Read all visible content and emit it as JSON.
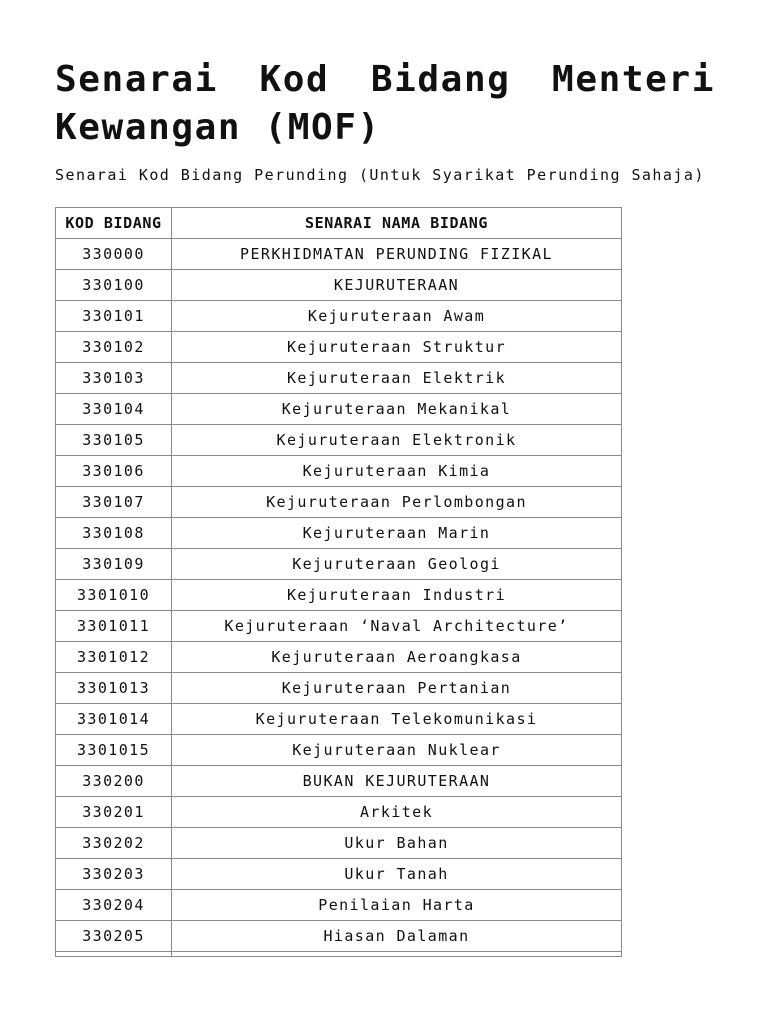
{
  "title": {
    "line1": [
      "Senarai",
      "Kod",
      "Bidang",
      "Menteri"
    ],
    "line2": "Kewangan (MOF)"
  },
  "subtitle": "Senarai Kod Bidang Perunding (Untuk Syarikat Perunding Sahaja)",
  "table": {
    "headers": [
      "KOD BIDANG",
      "SENARAI NAMA BIDANG"
    ],
    "rows": [
      [
        "330000",
        "PERKHIDMATAN PERUNDING FIZIKAL"
      ],
      [
        "330100",
        "KEJURUTERAAN"
      ],
      [
        "330101",
        "Kejuruteraan Awam"
      ],
      [
        "330102",
        "Kejuruteraan Struktur"
      ],
      [
        "330103",
        "Kejuruteraan Elektrik"
      ],
      [
        "330104",
        "Kejuruteraan Mekanikal"
      ],
      [
        "330105",
        "Kejuruteraan Elektronik"
      ],
      [
        "330106",
        "Kejuruteraan Kimia"
      ],
      [
        "330107",
        "Kejuruteraan Perlombongan"
      ],
      [
        "330108",
        "Kejuruteraan Marin"
      ],
      [
        "330109",
        "Kejuruteraan Geologi"
      ],
      [
        "3301010",
        "Kejuruteraan Industri"
      ],
      [
        "3301011",
        "Kejuruteraan ‘Naval Architecture’"
      ],
      [
        "3301012",
        "Kejuruteraan Aeroangkasa"
      ],
      [
        "3301013",
        "Kejuruteraan Pertanian"
      ],
      [
        "3301014",
        "Kejuruteraan Telekomunikasi"
      ],
      [
        "3301015",
        "Kejuruteraan Nuklear"
      ],
      [
        "330200",
        "BUKAN KEJURUTERAAN"
      ],
      [
        "330201",
        "Arkitek"
      ],
      [
        "330202",
        "Ukur Bahan"
      ],
      [
        "330203",
        "Ukur Tanah"
      ],
      [
        "330204",
        "Penilaian Harta"
      ],
      [
        "330205",
        "Hiasan Dalaman"
      ]
    ]
  }
}
